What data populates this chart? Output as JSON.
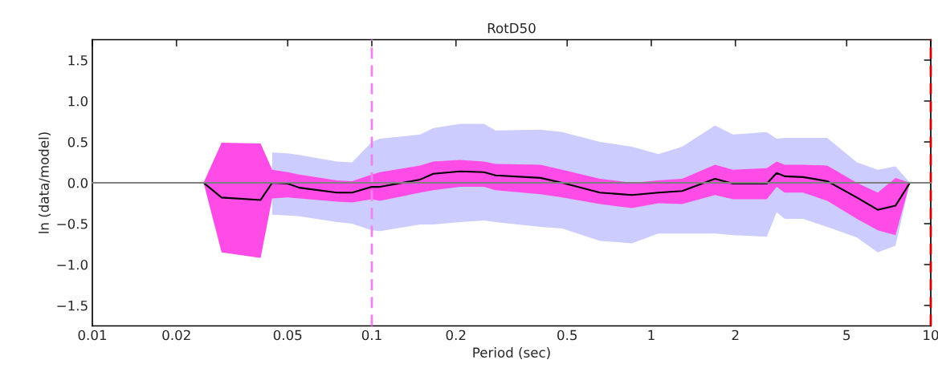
{
  "chart_data": {
    "type": "line",
    "title": "RotD50",
    "xlabel": "Period (sec)",
    "ylabel": "ln (data/model)",
    "log": "x",
    "x": [
      0.01,
      0.025,
      0.029,
      0.04,
      0.044,
      0.05,
      0.055,
      0.075,
      0.085,
      0.1,
      0.107,
      0.149,
      0.166,
      0.207,
      0.252,
      0.277,
      0.401,
      0.48,
      0.655,
      0.853,
      1.06,
      1.29,
      1.69,
      1.96,
      2.59,
      2.81,
      3.0,
      3.49,
      4.26,
      5.44,
      6.46,
      7.48,
      8.42,
      10
    ],
    "series": [
      {
        "type": "line",
        "color": "#ccccff",
        "values": [
          null,
          null,
          null,
          null,
          null,
          null,
          null,
          null,
          null,
          null,
          null,
          null,
          null,
          null,
          null,
          null,
          null,
          null,
          null,
          null,
          null,
          null,
          null,
          null,
          null,
          null,
          null,
          null,
          null,
          null,
          null,
          null,
          null,
          null
        ],
        "lower": [
          null,
          null,
          null,
          null,
          -0.39,
          -0.4,
          -0.41,
          -0.48,
          -0.5,
          -0.58,
          -0.59,
          -0.51,
          -0.51,
          -0.48,
          -0.46,
          -0.48,
          -0.54,
          -0.56,
          -0.71,
          -0.74,
          -0.62,
          -0.62,
          -0.62,
          -0.64,
          -0.66,
          -0.36,
          -0.44,
          -0.44,
          -0.54,
          -0.67,
          -0.85,
          -0.77,
          0,
          null
        ],
        "upper": [
          null,
          null,
          null,
          null,
          0.37,
          0.36,
          0.34,
          0.26,
          0.25,
          0.5,
          0.54,
          0.59,
          0.67,
          0.72,
          0.72,
          0.64,
          0.65,
          0.62,
          0.5,
          0.44,
          0.35,
          0.44,
          0.7,
          0.59,
          0.62,
          0.54,
          0.55,
          0.55,
          0.55,
          0.25,
          0.16,
          0.2,
          0,
          null
        ]
      },
      {
        "type": "line",
        "color": "#ff4ce6",
        "values": [
          null,
          null,
          null,
          null,
          null,
          null,
          null,
          null,
          null,
          null,
          null,
          null,
          null,
          null,
          null,
          null,
          null,
          null,
          null,
          null,
          null,
          null,
          null,
          null,
          null,
          null,
          null,
          null,
          null,
          null,
          null,
          null,
          null,
          null
        ],
        "lower": [
          0,
          0,
          -0.85,
          -0.92,
          -0.19,
          -0.18,
          -0.19,
          -0.23,
          -0.24,
          -0.2,
          -0.22,
          -0.12,
          -0.09,
          -0.05,
          -0.05,
          -0.09,
          -0.14,
          -0.18,
          -0.26,
          -0.31,
          -0.25,
          -0.26,
          -0.15,
          -0.2,
          -0.2,
          -0.05,
          -0.12,
          -0.12,
          -0.22,
          -0.44,
          -0.58,
          -0.64,
          0,
          null
        ],
        "upper": [
          0,
          0,
          0.49,
          0.48,
          0.16,
          0.13,
          0.1,
          0.03,
          0.02,
          0.1,
          0.13,
          0.21,
          0.26,
          0.28,
          0.26,
          0.23,
          0.22,
          0.16,
          0.05,
          0,
          0.03,
          0.05,
          0.22,
          0.16,
          0.18,
          0.26,
          0.22,
          0.22,
          0.21,
          0,
          -0.12,
          0.06,
          0,
          null
        ]
      },
      {
        "color": "#000000",
        "values": [
          0,
          0,
          -0.18,
          -0.21,
          0,
          -0.01,
          -0.06,
          -0.12,
          -0.12,
          -0.05,
          -0.05,
          0.04,
          0.11,
          0.14,
          0.13,
          0.09,
          0.06,
          0,
          -0.12,
          -0.15,
          -0.12,
          -0.1,
          0.05,
          -0.01,
          -0.01,
          0.12,
          0.08,
          0.07,
          0.02,
          -0.18,
          -0.33,
          -0.28,
          0,
          0
        ]
      }
    ],
    "ref_lines": [
      {
        "axis": "y",
        "value": 0,
        "color": "#808080",
        "line_style": "solid"
      },
      {
        "axis": "x",
        "value": 0.1,
        "color": "#ee82ee",
        "line_style": "dashed"
      },
      {
        "axis": "x",
        "value": 10,
        "color": "#cc0000",
        "line_style": "dashed"
      }
    ],
    "xlim": [
      0.01,
      10
    ],
    "xticks": [
      0.01,
      0.02,
      0.05,
      0.1,
      0.2,
      0.5,
      1,
      2,
      5,
      10
    ],
    "ylim": [
      -1.75,
      1.75
    ],
    "yticks": [
      {
        "value": -1.5,
        "label": "−1.5"
      },
      {
        "value": -1.0,
        "label": "−1.0"
      },
      {
        "value": -0.5,
        "label": "−0.5"
      },
      {
        "value": 0,
        "label": "0.0"
      },
      0.5,
      {
        "value": 1,
        "label": "1.0"
      },
      1.5
    ],
    "grid": false,
    "legend": false
  }
}
